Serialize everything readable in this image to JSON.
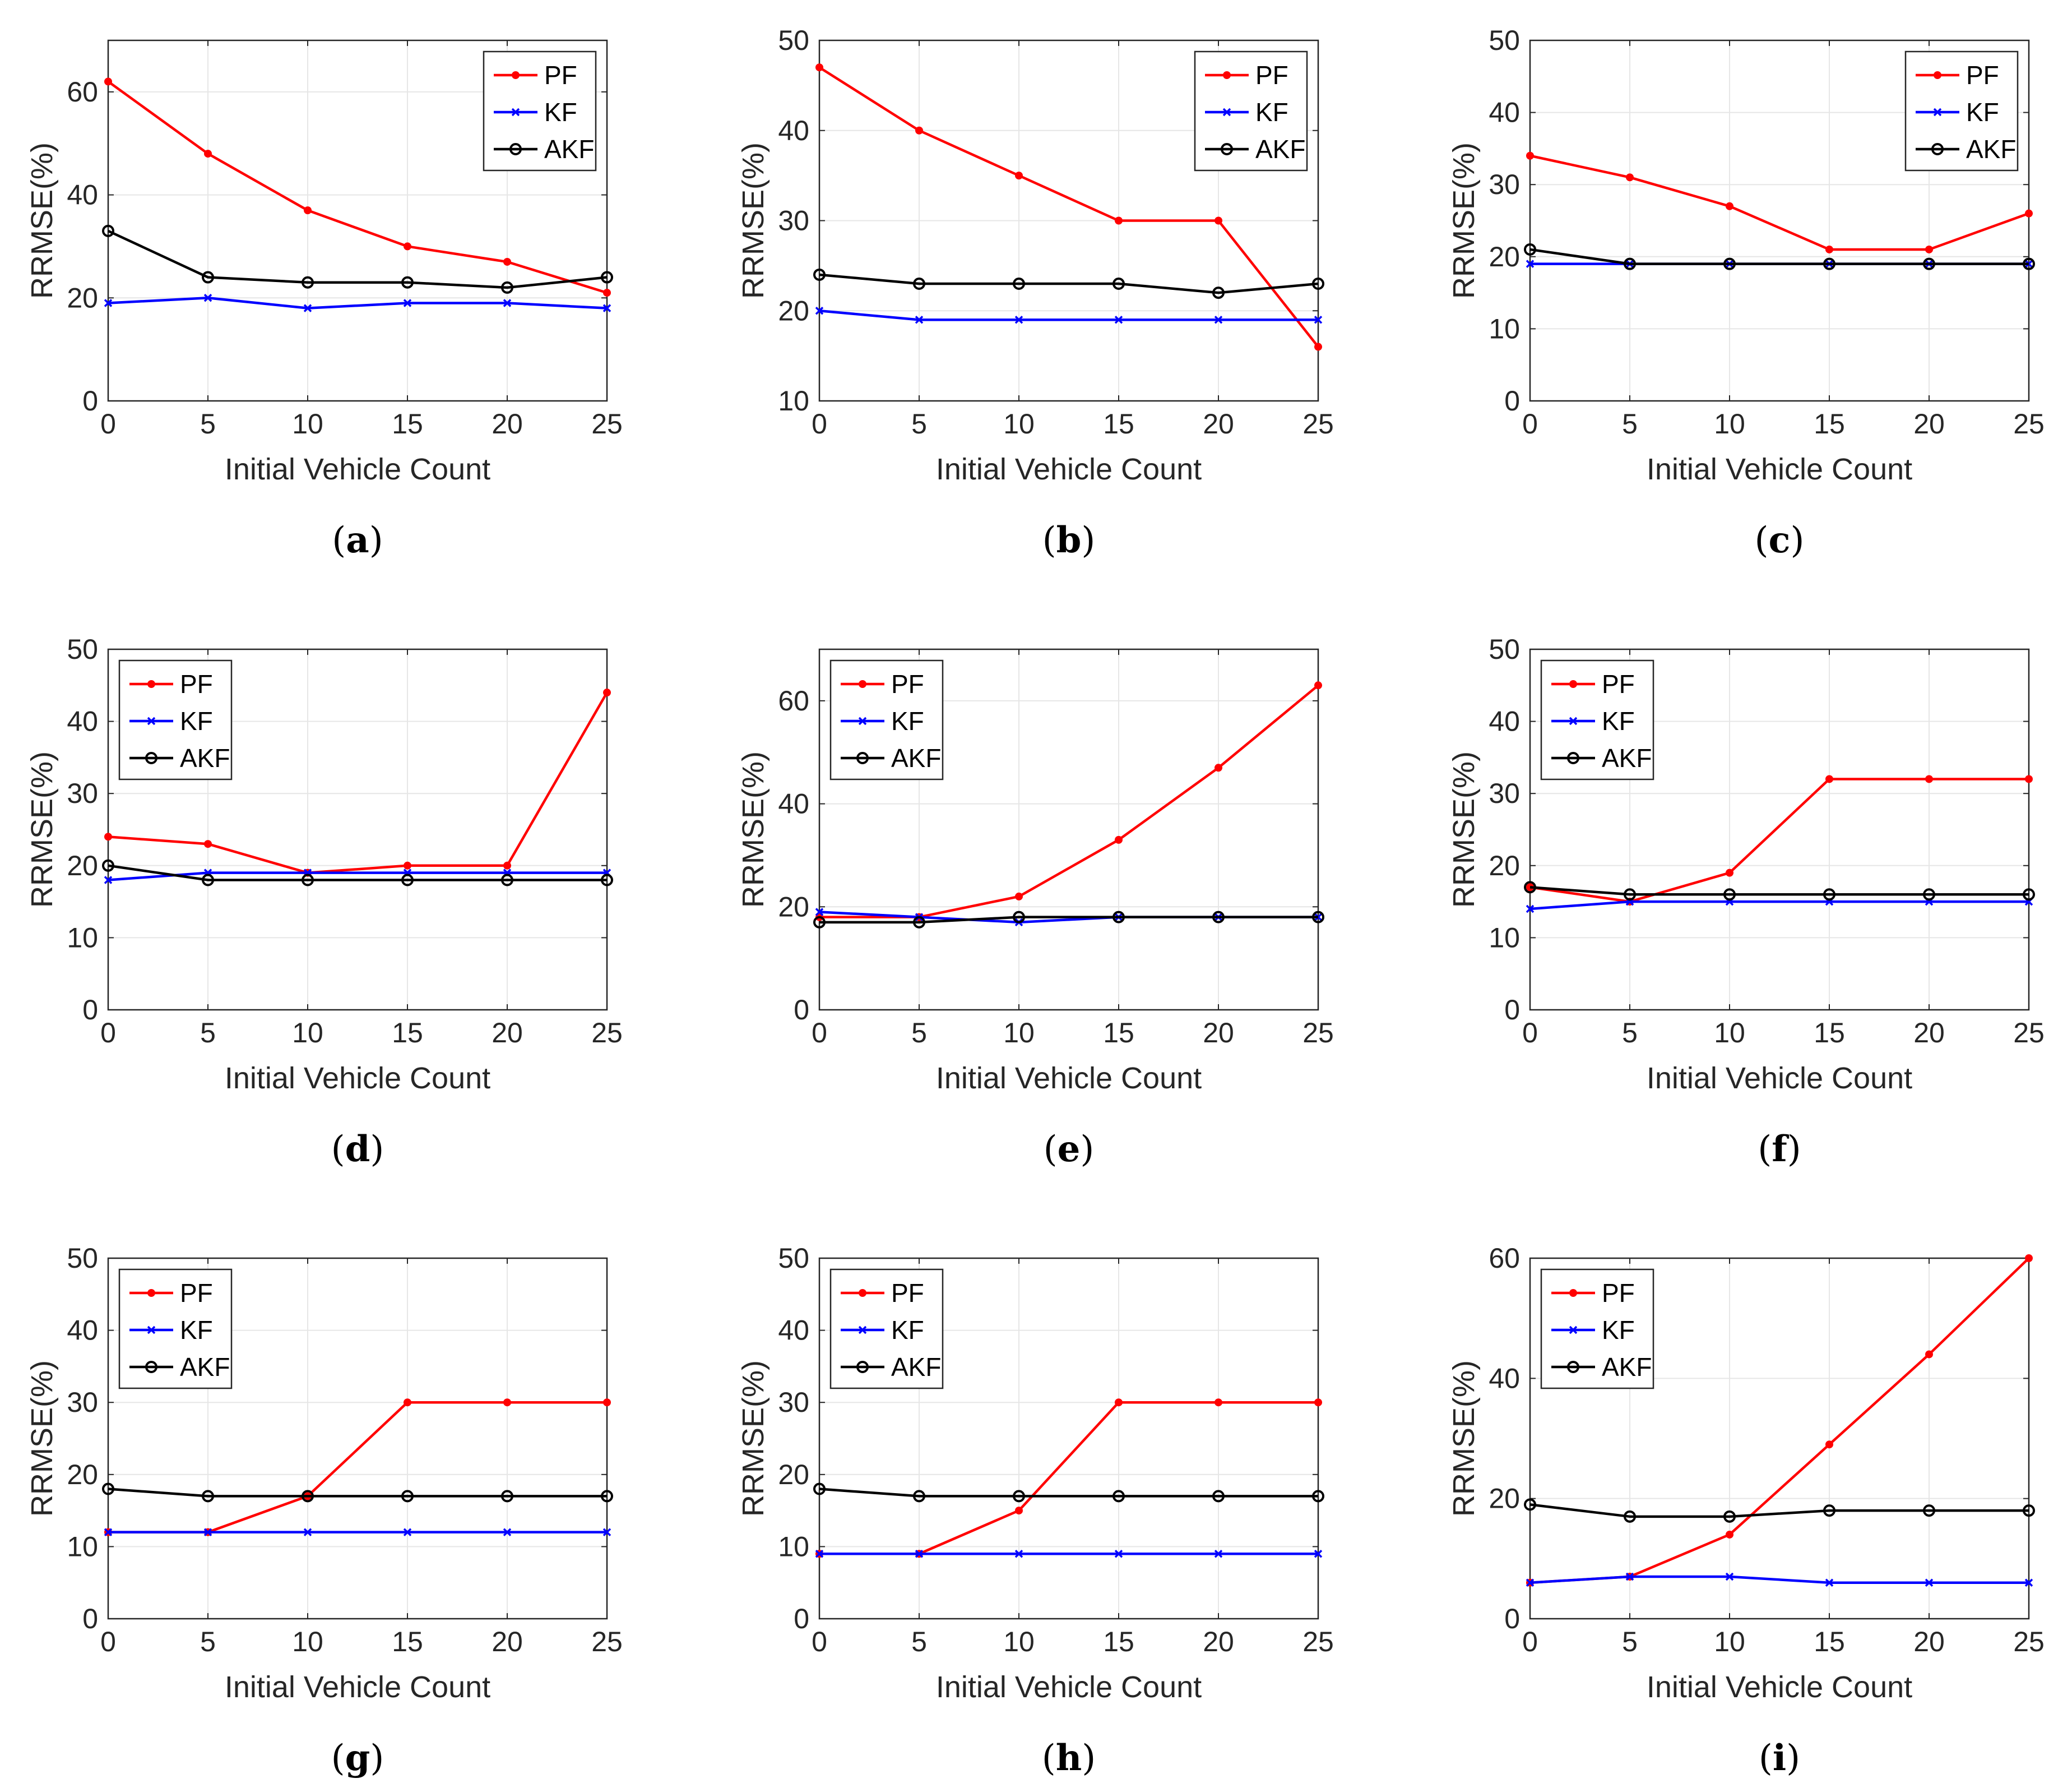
{
  "chart_data": [
    {
      "panel": "a",
      "type": "line",
      "xlabel": "Initial Vehicle Count",
      "ylabel": "RRMSE(%)",
      "x": [
        0,
        5,
        10,
        15,
        20,
        25
      ],
      "xticks": [
        0,
        5,
        10,
        15,
        20,
        25
      ],
      "xlim": [
        0,
        25
      ],
      "ylim": [
        0,
        70
      ],
      "yticks": [
        0,
        20,
        40,
        60
      ],
      "grid": true,
      "legend_location": "top-right",
      "series": [
        {
          "name": "PF",
          "values": [
            62,
            48,
            37,
            30,
            27,
            21
          ]
        },
        {
          "name": "KF",
          "values": [
            19,
            20,
            18,
            19,
            19,
            18
          ]
        },
        {
          "name": "AKF",
          "values": [
            33,
            24,
            23,
            23,
            22,
            24
          ]
        }
      ]
    },
    {
      "panel": "b",
      "type": "line",
      "xlabel": "Initial Vehicle Count",
      "ylabel": "RRMSE(%)",
      "x": [
        0,
        5,
        10,
        15,
        20,
        25
      ],
      "xticks": [
        0,
        5,
        10,
        15,
        20,
        25
      ],
      "xlim": [
        0,
        25
      ],
      "ylim": [
        10,
        50
      ],
      "yticks": [
        10,
        20,
        30,
        40,
        50
      ],
      "grid": true,
      "legend_location": "top-right",
      "series": [
        {
          "name": "PF",
          "values": [
            47,
            40,
            35,
            30,
            30,
            16
          ]
        },
        {
          "name": "KF",
          "values": [
            20,
            19,
            19,
            19,
            19,
            19
          ]
        },
        {
          "name": "AKF",
          "values": [
            24,
            23,
            23,
            23,
            22,
            23
          ]
        }
      ]
    },
    {
      "panel": "c",
      "type": "line",
      "xlabel": "Initial Vehicle Count",
      "ylabel": "RRMSE(%)",
      "x": [
        0,
        5,
        10,
        15,
        20,
        25
      ],
      "xticks": [
        0,
        5,
        10,
        15,
        20,
        25
      ],
      "xlim": [
        0,
        25
      ],
      "ylim": [
        0,
        50
      ],
      "yticks": [
        0,
        10,
        20,
        30,
        40,
        50
      ],
      "grid": true,
      "legend_location": "top-right",
      "series": [
        {
          "name": "PF",
          "values": [
            34,
            31,
            27,
            21,
            21,
            26
          ]
        },
        {
          "name": "KF",
          "values": [
            19,
            19,
            19,
            19,
            19,
            19
          ]
        },
        {
          "name": "AKF",
          "values": [
            21,
            19,
            19,
            19,
            19,
            19
          ]
        }
      ]
    },
    {
      "panel": "d",
      "type": "line",
      "xlabel": "Initial Vehicle Count",
      "ylabel": "RRMSE(%)",
      "x": [
        0,
        5,
        10,
        15,
        20,
        25
      ],
      "xticks": [
        0,
        5,
        10,
        15,
        20,
        25
      ],
      "xlim": [
        0,
        25
      ],
      "ylim": [
        0,
        50
      ],
      "yticks": [
        0,
        10,
        20,
        30,
        40,
        50
      ],
      "grid": true,
      "legend_location": "top-left",
      "series": [
        {
          "name": "PF",
          "values": [
            24,
            23,
            19,
            20,
            20,
            44
          ]
        },
        {
          "name": "KF",
          "values": [
            18,
            19,
            19,
            19,
            19,
            19
          ]
        },
        {
          "name": "AKF",
          "values": [
            20,
            18,
            18,
            18,
            18,
            18
          ]
        }
      ]
    },
    {
      "panel": "e",
      "type": "line",
      "xlabel": "Initial Vehicle Count",
      "ylabel": "RRMSE(%)",
      "x": [
        0,
        5,
        10,
        15,
        20,
        25
      ],
      "xticks": [
        0,
        5,
        10,
        15,
        20,
        25
      ],
      "xlim": [
        0,
        25
      ],
      "ylim": [
        0,
        70
      ],
      "yticks": [
        0,
        20,
        40,
        60
      ],
      "grid": true,
      "legend_location": "top-left",
      "series": [
        {
          "name": "PF",
          "values": [
            18,
            18,
            22,
            33,
            47,
            63
          ]
        },
        {
          "name": "KF",
          "values": [
            19,
            18,
            17,
            18,
            18,
            18
          ]
        },
        {
          "name": "AKF",
          "values": [
            17,
            17,
            18,
            18,
            18,
            18
          ]
        }
      ]
    },
    {
      "panel": "f",
      "type": "line",
      "xlabel": "Initial Vehicle Count",
      "ylabel": "RRMSE(%)",
      "x": [
        0,
        5,
        10,
        15,
        20,
        25
      ],
      "xticks": [
        0,
        5,
        10,
        15,
        20,
        25
      ],
      "xlim": [
        0,
        25
      ],
      "ylim": [
        0,
        50
      ],
      "yticks": [
        0,
        10,
        20,
        30,
        40,
        50
      ],
      "grid": true,
      "legend_location": "top-left",
      "series": [
        {
          "name": "PF",
          "values": [
            17,
            15,
            19,
            32,
            32,
            32
          ]
        },
        {
          "name": "KF",
          "values": [
            14,
            15,
            15,
            15,
            15,
            15
          ]
        },
        {
          "name": "AKF",
          "values": [
            17,
            16,
            16,
            16,
            16,
            16
          ]
        }
      ]
    },
    {
      "panel": "g",
      "type": "line",
      "xlabel": "Initial Vehicle Count",
      "ylabel": "RRMSE(%)",
      "x": [
        0,
        5,
        10,
        15,
        20,
        25
      ],
      "xticks": [
        0,
        5,
        10,
        15,
        20,
        25
      ],
      "xlim": [
        0,
        25
      ],
      "ylim": [
        0,
        50
      ],
      "yticks": [
        0,
        10,
        20,
        30,
        40,
        50
      ],
      "grid": true,
      "legend_location": "top-left",
      "series": [
        {
          "name": "PF",
          "values": [
            12,
            12,
            17,
            30,
            30,
            30
          ]
        },
        {
          "name": "KF",
          "values": [
            12,
            12,
            12,
            12,
            12,
            12
          ]
        },
        {
          "name": "AKF",
          "values": [
            18,
            17,
            17,
            17,
            17,
            17
          ]
        }
      ]
    },
    {
      "panel": "h",
      "type": "line",
      "xlabel": "Initial Vehicle Count",
      "ylabel": "RRMSE(%)",
      "x": [
        0,
        5,
        10,
        15,
        20,
        25
      ],
      "xticks": [
        0,
        5,
        10,
        15,
        20,
        25
      ],
      "xlim": [
        0,
        25
      ],
      "ylim": [
        0,
        50
      ],
      "yticks": [
        0,
        10,
        20,
        30,
        40,
        50
      ],
      "grid": true,
      "legend_location": "top-left",
      "series": [
        {
          "name": "PF",
          "values": [
            9,
            9,
            15,
            30,
            30,
            30
          ]
        },
        {
          "name": "KF",
          "values": [
            9,
            9,
            9,
            9,
            9,
            9
          ]
        },
        {
          "name": "AKF",
          "values": [
            18,
            17,
            17,
            17,
            17,
            17
          ]
        }
      ]
    },
    {
      "panel": "i",
      "type": "line",
      "xlabel": "Initial Vehicle Count",
      "ylabel": "RRMSE(%)",
      "x": [
        0,
        5,
        10,
        15,
        20,
        25
      ],
      "xticks": [
        0,
        5,
        10,
        15,
        20,
        25
      ],
      "xlim": [
        0,
        25
      ],
      "ylim": [
        0,
        60
      ],
      "yticks": [
        0,
        20,
        40,
        60
      ],
      "grid": true,
      "legend_location": "top-left",
      "series": [
        {
          "name": "PF",
          "values": [
            6,
            7,
            14,
            29,
            44,
            60
          ]
        },
        {
          "name": "KF",
          "values": [
            6,
            7,
            7,
            6,
            6,
            6
          ]
        },
        {
          "name": "AKF",
          "values": [
            19,
            17,
            17,
            18,
            18,
            18
          ]
        }
      ]
    }
  ],
  "styles": {
    "PF": {
      "color": "#ff0000",
      "marker": "dot"
    },
    "KF": {
      "color": "#0000ff",
      "marker": "x"
    },
    "AKF": {
      "color": "#000000",
      "marker": "circle"
    },
    "grid_color": "#e6e6e6",
    "axis_color": "#262626"
  }
}
